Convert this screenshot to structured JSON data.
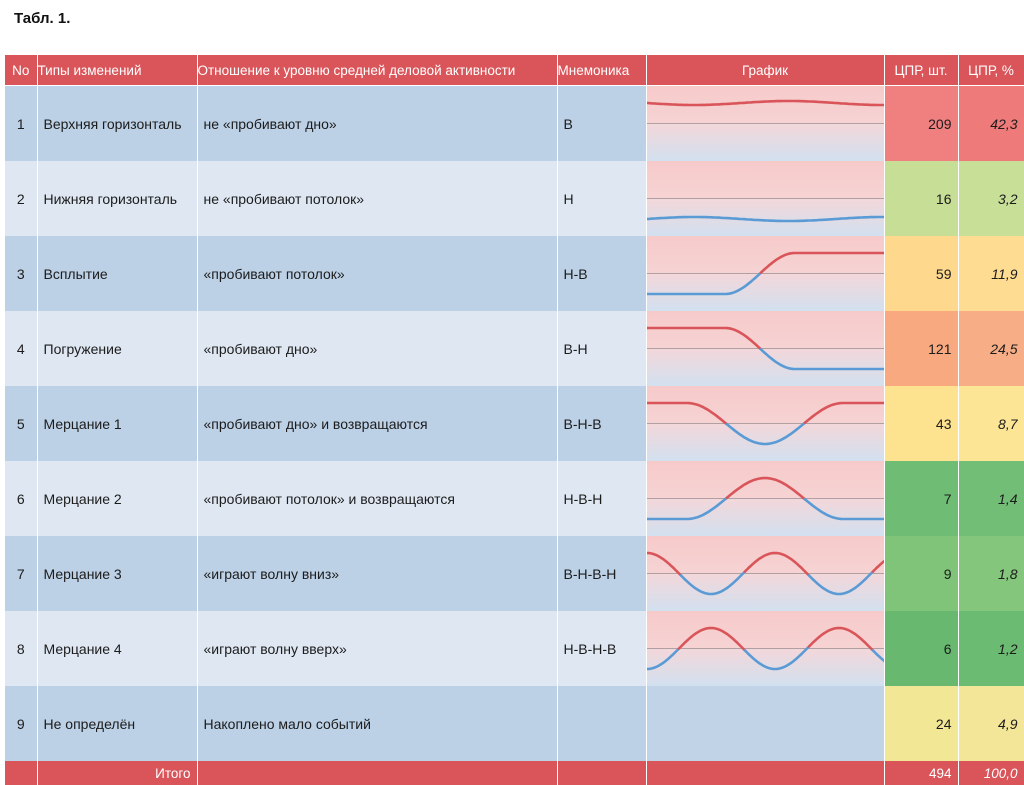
{
  "caption": "Табл. 1.",
  "header": {
    "no": "No",
    "type": "Типы изменений",
    "relation": "Отношение к уровню средней деловой активности",
    "mnemonic": "Мнемоника",
    "graph": "График",
    "qty": "ЦПР, шт.",
    "pct": "ЦПР, %"
  },
  "rows": [
    {
      "no": "1",
      "type": "Верхняя горизонталь",
      "relation": "не «пробивают дно»",
      "mnemonic": "В",
      "graph": "upper",
      "qty": "209",
      "pct": "42,3",
      "qty_color": "#f08080",
      "pct_color": "#ee7a7a"
    },
    {
      "no": "2",
      "type": "Нижняя горизонталь",
      "relation": "не «пробивают потолок»",
      "mnemonic": "Н",
      "graph": "lower",
      "qty": "16",
      "pct": "3,2",
      "qty_color": "#c6de95",
      "pct_color": "#c8df98"
    },
    {
      "no": "3",
      "type": "Всплытие",
      "relation": "«пробивают потолок»",
      "mnemonic": "Н-В",
      "graph": "rise",
      "qty": "59",
      "pct": "11,9",
      "qty_color": "#fed88d",
      "pct_color": "#fedc92"
    },
    {
      "no": "4",
      "type": "Погружение",
      "relation": "«пробивают дно»",
      "mnemonic": "В-Н",
      "graph": "fall",
      "qty": "121",
      "pct": "24,5",
      "qty_color": "#f8a97f",
      "pct_color": "#f7ad85"
    },
    {
      "no": "5",
      "type": "Мерцание 1",
      "relation": "«пробивают дно» и возвращаются",
      "mnemonic": "В-Н-В",
      "graph": "dip",
      "qty": "43",
      "pct": "8,7",
      "qty_color": "#fde28f",
      "pct_color": "#fde596"
    },
    {
      "no": "6",
      "type": "Мерцание 2",
      "relation": "«пробивают потолок» и возвращаются",
      "mnemonic": "Н-В-Н",
      "graph": "peak",
      "qty": "7",
      "pct": "1,4",
      "qty_color": "#6fbd74",
      "pct_color": "#72be76"
    },
    {
      "no": "7",
      "type": "Мерцание 3",
      "relation": "«играют волну вниз»",
      "mnemonic": "В-Н-В-Н",
      "graph": "wave_down",
      "qty": "9",
      "pct": "1,8",
      "qty_color": "#80c47a",
      "pct_color": "#84c67c"
    },
    {
      "no": "8",
      "type": "Мерцание 4",
      "relation": "«играют волну вверх»",
      "mnemonic": "Н-В-Н-В",
      "graph": "wave_up",
      "qty": "6",
      "pct": "1,2",
      "qty_color": "#68b96f",
      "pct_color": "#6cbb72"
    },
    {
      "no": "9",
      "type": "Не определён",
      "relation": "Накоплено мало событий",
      "mnemonic": "",
      "graph": "none",
      "qty": "24",
      "pct": "4,9",
      "qty_color": "#f2e795",
      "pct_color": "#f4e698"
    }
  ],
  "total": {
    "label": "Итого",
    "qty": "494",
    "pct": "100,0"
  },
  "colors": {
    "header": "#d9555a",
    "row_odd": "#bcd0e6",
    "row_even": "#dee7f2",
    "line_red": "#d9555a",
    "line_blue": "#5a9bd5"
  }
}
